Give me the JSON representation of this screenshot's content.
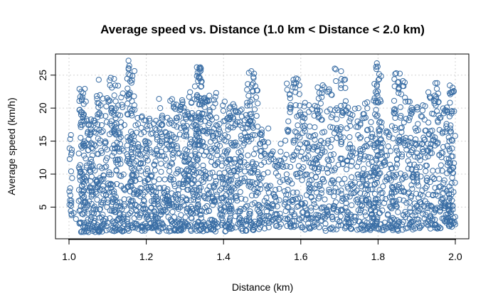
{
  "chart_data": {
    "type": "scatter",
    "title": "Average speed vs. Distance (1.0 km < Distance < 2.0 km)",
    "xlabel": "Distance (km)",
    "ylabel": "Average speed (km/h)",
    "xlim": [
      0.965,
      2.035
    ],
    "ylim": [
      0.2,
      28.2
    ],
    "x_ticks": [
      1.0,
      1.2,
      1.4,
      1.6,
      1.8,
      2.0
    ],
    "x_tick_labels": [
      "1.0",
      "1.2",
      "1.4",
      "1.6",
      "1.8",
      "2.0"
    ],
    "y_ticks": [
      5,
      10,
      15,
      20,
      25
    ],
    "y_tick_labels": [
      "5",
      "10",
      "15",
      "20",
      "25"
    ],
    "grid": true,
    "marker": "open-circle",
    "point_color": "#3a6ea5",
    "series": [
      {
        "values_note": "",
        "points": [
          [
            1.003,
            15.3
          ],
          [
            1.008,
            9.4
          ],
          [
            1.012,
            4.1
          ],
          [
            1.018,
            3.2
          ],
          [
            1.027,
            22.9
          ],
          [
            1.029,
            21.7
          ],
          [
            1.031,
            19.4
          ],
          [
            1.034,
            14.0
          ],
          [
            1.037,
            8.8
          ],
          [
            1.041,
            2.0
          ],
          [
            1.045,
            1.3
          ],
          [
            1.052,
            17.5
          ],
          [
            1.058,
            11.2
          ],
          [
            1.063,
            4.6
          ],
          [
            1.068,
            1.6
          ],
          [
            1.074,
            20.8
          ],
          [
            1.077,
            24.3
          ],
          [
            1.081,
            15.1
          ],
          [
            1.086,
            7.7
          ],
          [
            1.091,
            2.4
          ],
          [
            1.102,
            21.0
          ],
          [
            1.108,
            24.6
          ],
          [
            1.112,
            13.9
          ],
          [
            1.116,
            6.2
          ],
          [
            1.121,
            18.5
          ],
          [
            1.127,
            23.4
          ],
          [
            1.131,
            9.8
          ],
          [
            1.137,
            3.1
          ],
          [
            1.142,
            1.4
          ],
          [
            1.154,
            27.2
          ],
          [
            1.156,
            26.4
          ],
          [
            1.158,
            25.0
          ],
          [
            1.161,
            19.2
          ],
          [
            1.166,
            12.6
          ],
          [
            1.171,
            5.4
          ],
          [
            1.176,
            2.2
          ],
          [
            1.186,
            11.7
          ],
          [
            1.192,
            6.9
          ],
          [
            1.197,
            2.5
          ],
          [
            1.203,
            16.8
          ],
          [
            1.209,
            18.1
          ],
          [
            1.214,
            13.3
          ],
          [
            1.219,
            7.4
          ],
          [
            1.224,
            3.0
          ],
          [
            1.233,
            21.4
          ],
          [
            1.236,
            20.0
          ],
          [
            1.241,
            15.7
          ],
          [
            1.248,
            9.2
          ],
          [
            1.253,
            4.3
          ],
          [
            1.259,
            1.8
          ],
          [
            1.266,
            14.5
          ],
          [
            1.272,
            17.4
          ],
          [
            1.278,
            10.1
          ],
          [
            1.283,
            5.0
          ],
          [
            1.289,
            19.8
          ],
          [
            1.294,
            20.9
          ],
          [
            1.299,
            12.0
          ],
          [
            1.305,
            6.1
          ],
          [
            1.311,
            21.7
          ],
          [
            1.316,
            18.6
          ],
          [
            1.321,
            10.7
          ],
          [
            1.326,
            23.3
          ],
          [
            1.331,
            26.2
          ],
          [
            1.333,
            25.4
          ],
          [
            1.336,
            24.8
          ],
          [
            1.341,
            17.9
          ],
          [
            1.347,
            11.3
          ],
          [
            1.352,
            4.9
          ],
          [
            1.358,
            21.2
          ],
          [
            1.364,
            19.7
          ],
          [
            1.369,
            13.5
          ],
          [
            1.375,
            8.0
          ],
          [
            1.381,
            22.3
          ],
          [
            1.386,
            16.1
          ],
          [
            1.391,
            9.5
          ],
          [
            1.397,
            3.7
          ],
          [
            1.403,
            21.0
          ],
          [
            1.409,
            18.4
          ],
          [
            1.414,
            12.2
          ],
          [
            1.419,
            6.5
          ],
          [
            1.425,
            20.6
          ],
          [
            1.431,
            14.8
          ],
          [
            1.436,
            8.3
          ],
          [
            1.443,
            2.6
          ],
          [
            1.449,
            17.0
          ],
          [
            1.455,
            10.4
          ],
          [
            1.461,
            5.2
          ],
          [
            1.468,
            20.4
          ],
          [
            1.472,
            25.6
          ],
          [
            1.476,
            22.5
          ],
          [
            1.481,
            15.9
          ],
          [
            1.487,
            8.7
          ],
          [
            1.493,
            3.4
          ],
          [
            1.499,
            16.3
          ],
          [
            1.505,
            11.8
          ],
          [
            1.511,
            6.4
          ],
          [
            1.517,
            2.6
          ],
          [
            1.523,
            12.8
          ],
          [
            1.529,
            7.0
          ],
          [
            1.535,
            3.3
          ],
          [
            1.542,
            11.4
          ],
          [
            1.548,
            14.6
          ],
          [
            1.554,
            9.1
          ],
          [
            1.561,
            4.4
          ],
          [
            1.567,
            16.5
          ],
          [
            1.573,
            11.1
          ],
          [
            1.579,
            5.8
          ],
          [
            1.586,
            23.1
          ],
          [
            1.588,
            24.5
          ],
          [
            1.592,
            17.4
          ],
          [
            1.598,
            10.2
          ],
          [
            1.604,
            4.2
          ],
          [
            1.611,
            20.8
          ],
          [
            1.617,
            14.7
          ],
          [
            1.623,
            9.0
          ],
          [
            1.629,
            3.2
          ],
          [
            1.636,
            17.1
          ],
          [
            1.642,
            12.4
          ],
          [
            1.648,
            6.6
          ],
          [
            1.655,
            22.8
          ],
          [
            1.661,
            16.4
          ],
          [
            1.667,
            10.8
          ],
          [
            1.673,
            5.1
          ],
          [
            1.679,
            18.6
          ],
          [
            1.685,
            13.0
          ],
          [
            1.688,
            26.0
          ],
          [
            1.691,
            24.1
          ],
          [
            1.697,
            7.3
          ],
          [
            1.703,
            16.8
          ],
          [
            1.709,
            11.5
          ],
          [
            1.716,
            4.9
          ],
          [
            1.722,
            20.1
          ],
          [
            1.728,
            14.0
          ],
          [
            1.734,
            8.4
          ],
          [
            1.741,
            3.0
          ],
          [
            1.747,
            18.0
          ],
          [
            1.753,
            12.3
          ],
          [
            1.759,
            6.0
          ],
          [
            1.766,
            20.7
          ],
          [
            1.772,
            15.2
          ],
          [
            1.778,
            9.6
          ],
          [
            1.784,
            3.8
          ],
          [
            1.791,
            21.5
          ],
          [
            1.797,
            26.8
          ],
          [
            1.799,
            26.3
          ],
          [
            1.803,
            17.8
          ],
          [
            1.809,
            11.2
          ],
          [
            1.816,
            5.6
          ],
          [
            1.822,
            16.5
          ],
          [
            1.829,
            10.0
          ],
          [
            1.835,
            4.8
          ],
          [
            1.841,
            19.3
          ],
          [
            1.847,
            25.3
          ],
          [
            1.853,
            22.3
          ],
          [
            1.859,
            15.0
          ],
          [
            1.865,
            9.4
          ],
          [
            1.871,
            3.5
          ],
          [
            1.878,
            21.0
          ],
          [
            1.884,
            15.5
          ],
          [
            1.891,
            9.9
          ],
          [
            1.897,
            4.3
          ],
          [
            1.903,
            17.6
          ],
          [
            1.909,
            12.1
          ],
          [
            1.916,
            6.7
          ],
          [
            1.922,
            20.3
          ],
          [
            1.929,
            14.6
          ],
          [
            1.935,
            8.8
          ],
          [
            1.941,
            3.2
          ],
          [
            1.947,
            21.9
          ],
          [
            1.953,
            23.8
          ],
          [
            1.959,
            16.7
          ],
          [
            1.966,
            10.5
          ],
          [
            1.972,
            5.4
          ],
          [
            1.978,
            20.1
          ],
          [
            1.984,
            13.8
          ],
          [
            1.989,
            7.6
          ],
          [
            1.993,
            23.1
          ],
          [
            1.996,
            22.6
          ],
          [
            1.998,
            2.7
          ]
        ]
      }
    ],
    "dense_columns": [
      [
        1.0,
        1.008,
        2.5,
        16.0,
        18
      ],
      [
        1.025,
        1.045,
        1.2,
        23.0,
        90
      ],
      [
        1.045,
        1.062,
        1.2,
        18.5,
        60
      ],
      [
        1.063,
        1.09,
        1.2,
        22.5,
        95
      ],
      [
        1.09,
        1.12,
        1.3,
        24.5,
        90
      ],
      [
        1.12,
        1.145,
        1.3,
        23.5,
        80
      ],
      [
        1.15,
        1.17,
        1.4,
        27.0,
        95
      ],
      [
        1.17,
        1.2,
        1.4,
        19.5,
        80
      ],
      [
        1.2,
        1.23,
        1.8,
        18.5,
        90
      ],
      [
        1.23,
        1.26,
        1.3,
        21.0,
        80
      ],
      [
        1.26,
        1.3,
        1.4,
        21.5,
        120
      ],
      [
        1.3,
        1.33,
        1.3,
        22.5,
        110
      ],
      [
        1.33,
        1.345,
        1.4,
        26.2,
        90
      ],
      [
        1.345,
        1.38,
        1.3,
        22.0,
        110
      ],
      [
        1.38,
        1.42,
        1.3,
        21.0,
        120
      ],
      [
        1.42,
        1.46,
        1.4,
        20.5,
        100
      ],
      [
        1.46,
        1.49,
        1.5,
        25.5,
        95
      ],
      [
        1.49,
        1.52,
        1.6,
        17.0,
        60
      ],
      [
        1.52,
        1.56,
        2.0,
        14.0,
        50
      ],
      [
        1.56,
        1.6,
        1.8,
        24.5,
        95
      ],
      [
        1.6,
        1.64,
        1.6,
        20.5,
        95
      ],
      [
        1.64,
        1.68,
        1.4,
        24.0,
        90
      ],
      [
        1.68,
        1.72,
        1.6,
        26.0,
        95
      ],
      [
        1.72,
        1.76,
        1.5,
        20.0,
        90
      ],
      [
        1.76,
        1.79,
        1.5,
        21.5,
        85
      ],
      [
        1.79,
        1.81,
        1.5,
        26.8,
        90
      ],
      [
        1.81,
        1.84,
        1.5,
        17.5,
        60
      ],
      [
        1.84,
        1.87,
        1.4,
        25.3,
        90
      ],
      [
        1.87,
        1.9,
        1.6,
        21.0,
        75
      ],
      [
        1.9,
        1.93,
        1.8,
        20.5,
        70
      ],
      [
        1.93,
        1.96,
        1.6,
        24.0,
        85
      ],
      [
        1.96,
        1.985,
        1.8,
        20.0,
        75
      ],
      [
        1.985,
        2.0,
        2.0,
        23.5,
        60
      ]
    ]
  }
}
